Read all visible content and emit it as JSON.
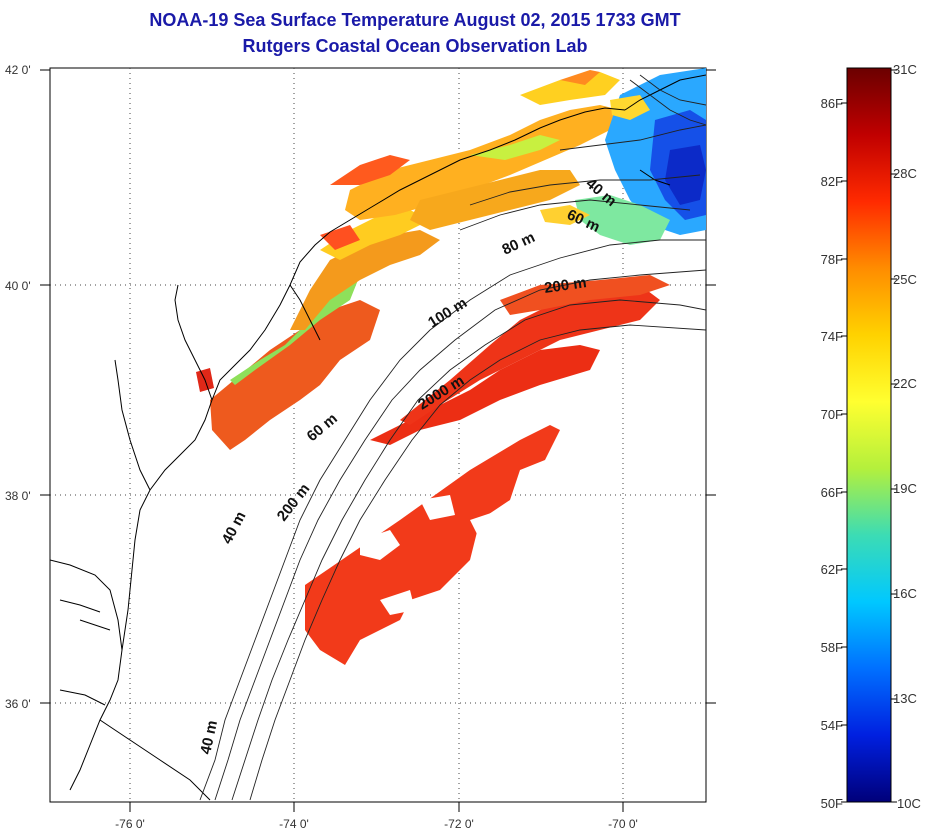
{
  "title_line1": "NOAA-19 Sea Surface Temperature August 02, 2015 1733 GMT",
  "title_line2": "Rutgers Coastal Ocean Observation Lab",
  "lat_ticks": [
    "42 0'",
    "40 0'",
    "38 0'",
    "36 0'"
  ],
  "lon_ticks": [
    "-76 0'",
    "-74 0'",
    "-72 0'",
    "-70 0'"
  ],
  "contour_labels": [
    "40 m",
    "60 m",
    "80 m",
    "200 m",
    "100 m",
    "2000 m",
    "60 m",
    "200 m",
    "40 m",
    "40 m"
  ],
  "colorbar": {
    "celsius": [
      "31C",
      "28C",
      "25C",
      "22C",
      "19C",
      "16C",
      "13C",
      "10C"
    ],
    "fahrenheit": [
      "86F",
      "82F",
      "78F",
      "74F",
      "70F",
      "66F",
      "62F",
      "58F",
      "54F",
      "50F"
    ],
    "colors": [
      "#6b0000",
      "#c00000",
      "#ff2a00",
      "#ff8c00",
      "#ffd200",
      "#ffff30",
      "#b4f03c",
      "#3cdcb4",
      "#00c8ff",
      "#0070ff",
      "#0020e0",
      "#00007a"
    ]
  }
}
